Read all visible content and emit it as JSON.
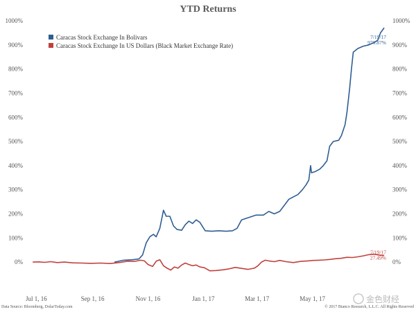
{
  "watermark": "金色财经",
  "chart_data": {
    "type": "line",
    "title": "YTD Returns",
    "xlabel": "",
    "ylabel": "",
    "ylim": [
      -8,
      100
    ],
    "y_tick_values": [
      0,
      10,
      20,
      30,
      40,
      50,
      60,
      70,
      80,
      90,
      100
    ],
    "y_tick_labels": [
      "0%",
      "100%",
      "200%",
      "300%",
      "400%",
      "500%",
      "600%",
      "700%",
      "800%",
      "900%",
      "1000%"
    ],
    "y_tick_unit_note": "hundreds of percent",
    "x_range": [
      "2016-06-20",
      "2017-07-22"
    ],
    "x_ticks": [
      {
        "date": "2016-07-01",
        "label": "Jul 1, 16"
      },
      {
        "date": "2016-09-01",
        "label": "Sep 1, 16"
      },
      {
        "date": "2016-11-01",
        "label": "Nov 1, 16"
      },
      {
        "date": "2017-01-01",
        "label": "Jan 1, 17"
      },
      {
        "date": "2017-03-01",
        "label": "Mar 1, 17"
      },
      {
        "date": "2017-05-01",
        "label": "May 1, 17"
      }
    ],
    "legend_position": "top-left",
    "grid": false,
    "series": [
      {
        "name": "Caracas Stock Exchange In Bolivars",
        "color": "#2e5d93",
        "end_date_label": "7/19/17",
        "end_value_label": "970.87%",
        "points": [
          [
            "2016-09-25",
            0
          ],
          [
            "2016-10-05",
            0.8
          ],
          [
            "2016-10-15",
            1.0
          ],
          [
            "2016-10-22",
            1.3
          ],
          [
            "2016-10-26",
            3.0
          ],
          [
            "2016-10-30",
            8.0
          ],
          [
            "2016-11-03",
            10.5
          ],
          [
            "2016-11-07",
            11.5
          ],
          [
            "2016-11-10",
            10.5
          ],
          [
            "2016-11-14",
            14.0
          ],
          [
            "2016-11-18",
            21.5
          ],
          [
            "2016-11-21",
            19.0
          ],
          [
            "2016-11-25",
            19.0
          ],
          [
            "2016-11-29",
            15.0
          ],
          [
            "2016-12-03",
            13.5
          ],
          [
            "2016-12-08",
            13.2
          ],
          [
            "2016-12-12",
            15.5
          ],
          [
            "2016-12-16",
            17.0
          ],
          [
            "2016-12-20",
            16.0
          ],
          [
            "2016-12-24",
            17.5
          ],
          [
            "2016-12-28",
            16.5
          ],
          [
            "2017-01-03",
            13.0
          ],
          [
            "2017-01-10",
            12.8
          ],
          [
            "2017-01-18",
            13.0
          ],
          [
            "2017-01-26",
            12.8
          ],
          [
            "2017-02-02",
            13.0
          ],
          [
            "2017-02-07",
            14.0
          ],
          [
            "2017-02-12",
            17.5
          ],
          [
            "2017-02-20",
            18.5
          ],
          [
            "2017-02-28",
            19.5
          ],
          [
            "2017-03-08",
            19.5
          ],
          [
            "2017-03-14",
            21.0
          ],
          [
            "2017-03-20",
            20.0
          ],
          [
            "2017-03-26",
            21.0
          ],
          [
            "2017-04-01",
            24.0
          ],
          [
            "2017-04-05",
            26.0
          ],
          [
            "2017-04-10",
            27.0
          ],
          [
            "2017-04-15",
            28.0
          ],
          [
            "2017-04-20",
            30.0
          ],
          [
            "2017-04-24",
            32.0
          ],
          [
            "2017-04-27",
            34.0
          ],
          [
            "2017-04-29",
            40.0
          ],
          [
            "2017-04-30",
            37.0
          ],
          [
            "2017-05-04",
            37.5
          ],
          [
            "2017-05-09",
            38.5
          ],
          [
            "2017-05-13",
            40.0
          ],
          [
            "2017-05-17",
            42.0
          ],
          [
            "2017-05-20",
            48.0
          ],
          [
            "2017-05-24",
            50.0
          ],
          [
            "2017-05-30",
            50.5
          ],
          [
            "2017-06-02",
            52.5
          ],
          [
            "2017-06-06",
            57.0
          ],
          [
            "2017-06-08",
            62.0
          ],
          [
            "2017-06-11",
            72.0
          ],
          [
            "2017-06-13",
            80.0
          ],
          [
            "2017-06-15",
            87.0
          ],
          [
            "2017-06-20",
            88.5
          ],
          [
            "2017-06-26",
            89.5
          ],
          [
            "2017-07-02",
            90.0
          ],
          [
            "2017-07-08",
            91.0
          ],
          [
            "2017-07-12",
            92.0
          ],
          [
            "2017-07-15",
            95.0
          ],
          [
            "2017-07-19",
            97.1
          ]
        ]
      },
      {
        "name": "Caracas Stock Exchange In US Dollars (Black Market Exchange Rate)",
        "color": "#c0403c",
        "end_date_label": "7/19/17",
        "end_value_label": "27.49%",
        "points": [
          [
            "2016-06-27",
            0
          ],
          [
            "2016-07-04",
            0.1
          ],
          [
            "2016-07-10",
            -0.1
          ],
          [
            "2016-07-17",
            0.2
          ],
          [
            "2016-07-24",
            -0.2
          ],
          [
            "2016-08-01",
            0.0
          ],
          [
            "2016-08-10",
            -0.3
          ],
          [
            "2016-08-20",
            -0.4
          ],
          [
            "2016-08-30",
            -0.5
          ],
          [
            "2016-09-10",
            -0.4
          ],
          [
            "2016-09-20",
            -0.6
          ],
          [
            "2016-09-30",
            -0.2
          ],
          [
            "2016-10-10",
            0.4
          ],
          [
            "2016-10-17",
            0.3
          ],
          [
            "2016-10-24",
            0.8
          ],
          [
            "2016-10-28",
            0.5
          ],
          [
            "2016-11-01",
            -1.0
          ],
          [
            "2016-11-06",
            -1.8
          ],
          [
            "2016-11-10",
            0.4
          ],
          [
            "2016-11-14",
            1.0
          ],
          [
            "2016-11-18",
            -1.5
          ],
          [
            "2016-11-22",
            -2.5
          ],
          [
            "2016-11-26",
            -3.3
          ],
          [
            "2016-11-30",
            -2.0
          ],
          [
            "2016-12-04",
            -2.5
          ],
          [
            "2016-12-08",
            -1.2
          ],
          [
            "2016-12-12",
            -0.4
          ],
          [
            "2016-12-16",
            -1.0
          ],
          [
            "2016-12-20",
            -1.5
          ],
          [
            "2016-12-24",
            -1.2
          ],
          [
            "2016-12-28",
            -2.0
          ],
          [
            "2017-01-02",
            -2.3
          ],
          [
            "2017-01-08",
            -3.6
          ],
          [
            "2017-01-15",
            -3.5
          ],
          [
            "2017-01-22",
            -3.2
          ],
          [
            "2017-01-29",
            -2.8
          ],
          [
            "2017-02-05",
            -2.2
          ],
          [
            "2017-02-12",
            -2.6
          ],
          [
            "2017-02-19",
            -3.0
          ],
          [
            "2017-02-26",
            -2.5
          ],
          [
            "2017-03-02",
            -1.5
          ],
          [
            "2017-03-06",
            0.0
          ],
          [
            "2017-03-10",
            0.8
          ],
          [
            "2017-03-14",
            0.5
          ],
          [
            "2017-03-20",
            0.2
          ],
          [
            "2017-03-26",
            0.7
          ],
          [
            "2017-04-02",
            0.2
          ],
          [
            "2017-04-10",
            -0.2
          ],
          [
            "2017-04-18",
            0.3
          ],
          [
            "2017-04-26",
            0.5
          ],
          [
            "2017-05-02",
            0.7
          ],
          [
            "2017-05-08",
            0.8
          ],
          [
            "2017-05-14",
            0.9
          ],
          [
            "2017-05-20",
            1.1
          ],
          [
            "2017-05-26",
            1.4
          ],
          [
            "2017-06-02",
            1.6
          ],
          [
            "2017-06-08",
            2.0
          ],
          [
            "2017-06-14",
            1.9
          ],
          [
            "2017-06-20",
            2.2
          ],
          [
            "2017-06-26",
            2.6
          ],
          [
            "2017-07-02",
            3.1
          ],
          [
            "2017-07-08",
            3.3
          ],
          [
            "2017-07-14",
            2.9
          ],
          [
            "2017-07-19",
            2.75
          ]
        ]
      }
    ],
    "footer_source": "Data Source: Bloomberg, DolarToday.com",
    "footer_copyright": "© 2017 Bianco Research, L.L.C. All Rights Reserved"
  }
}
